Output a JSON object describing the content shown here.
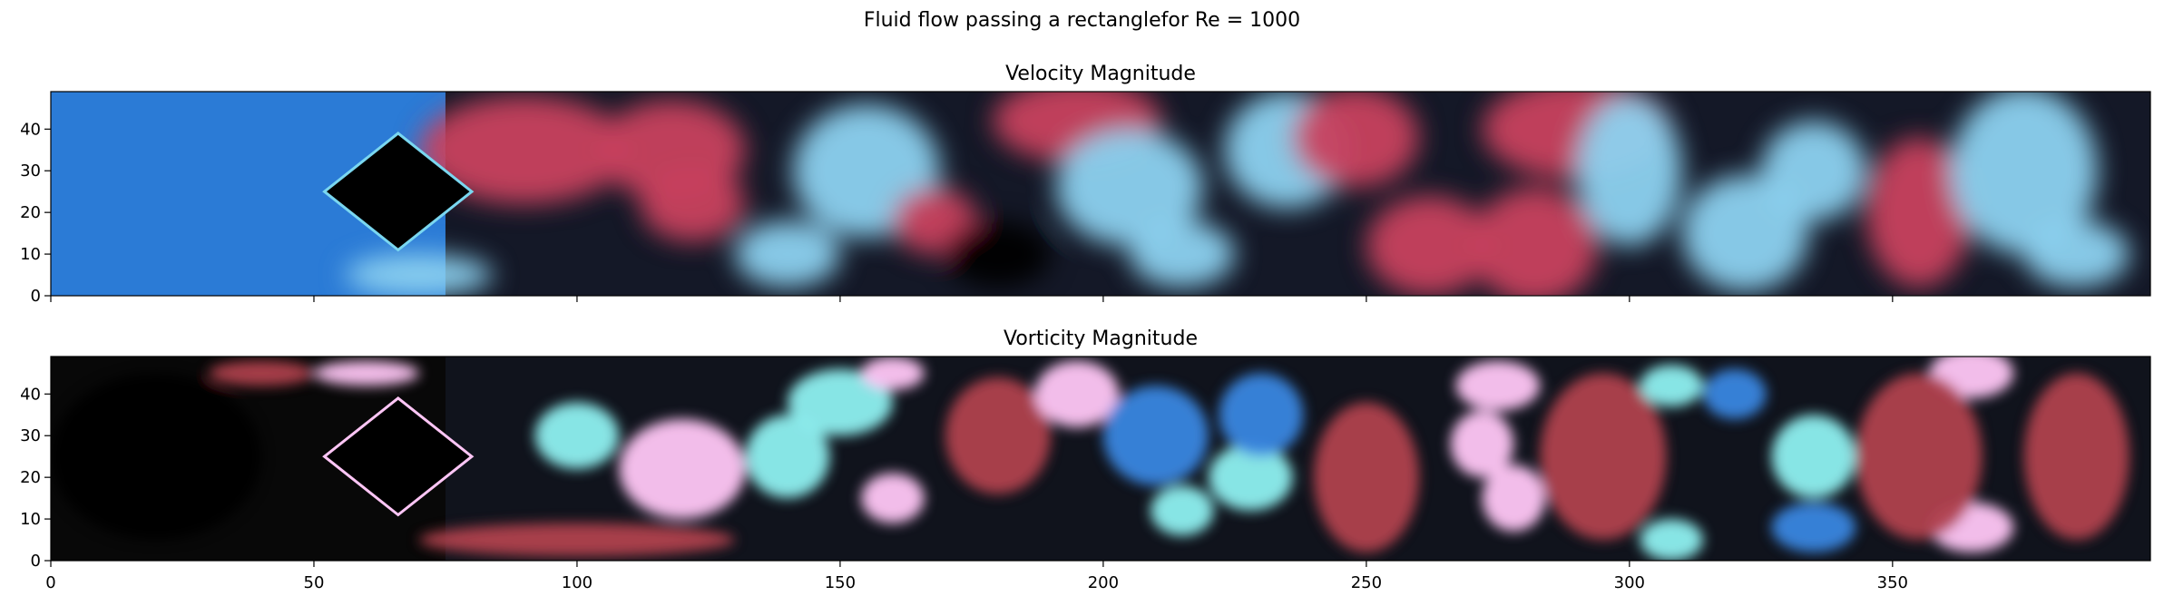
{
  "figure": {
    "suptitle": "Fluid flow passing a rectanglefor Re = 1000"
  },
  "chart_data": [
    {
      "type": "heatmap",
      "title": "Velocity Magnitude",
      "xlabel": "",
      "ylabel": "",
      "xlim": [
        0,
        399
      ],
      "ylim": [
        0,
        49
      ],
      "xticks": [
        0,
        50,
        100,
        150,
        200,
        250,
        300,
        350
      ],
      "yticks": [
        0,
        10,
        20,
        30,
        40
      ],
      "x_ticklabels_shown": false,
      "colormap": [
        "#2b7bd6",
        "#8cd2f0",
        "#000000",
        "#c8405e",
        "#e2e2ea"
      ],
      "obstacle": {
        "shape": "diamond",
        "vertices": [
          [
            52,
            25
          ],
          [
            66,
            39
          ],
          [
            80,
            25
          ],
          [
            66,
            11
          ]
        ],
        "fill": "#000000",
        "edge": "#7ad7f0"
      },
      "field_description": "vortex street wake downstream of obstacle"
    },
    {
      "type": "heatmap",
      "title": "Vorticity Magnitude",
      "xlabel": "",
      "ylabel": "",
      "xlim": [
        0,
        399
      ],
      "ylim": [
        0,
        49
      ],
      "xticks": [
        0,
        50,
        100,
        150,
        200,
        250,
        300,
        350
      ],
      "yticks": [
        0,
        10,
        20,
        30,
        40
      ],
      "x_ticklabels_shown": true,
      "colormap": [
        "#8ef0f0",
        "#3a86e0",
        "#000000",
        "#b0404e",
        "#ffc6f6"
      ],
      "obstacle": {
        "shape": "diamond",
        "vertices": [
          [
            52,
            25
          ],
          [
            66,
            39
          ],
          [
            80,
            25
          ],
          [
            66,
            11
          ]
        ],
        "fill": "#000000",
        "edge": "#ffc6f6"
      },
      "field_description": "alternating vortices shed from obstacle"
    }
  ]
}
